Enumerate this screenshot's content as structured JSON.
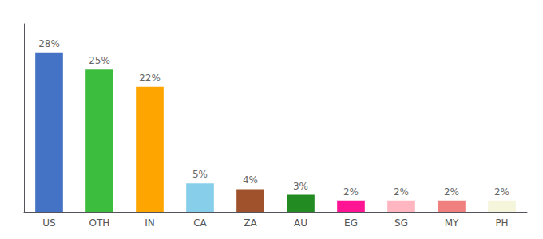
{
  "chart_data": {
    "type": "bar",
    "categories": [
      "US",
      "OTH",
      "IN",
      "CA",
      "ZA",
      "AU",
      "EG",
      "SG",
      "MY",
      "PH"
    ],
    "values": [
      28,
      25,
      22,
      5,
      4,
      3,
      2,
      2,
      2,
      2
    ],
    "value_labels": [
      "28%",
      "25%",
      "22%",
      "5%",
      "4%",
      "3%",
      "2%",
      "2%",
      "2%",
      "2%"
    ],
    "colors": [
      "#4472C4",
      "#3DBD3D",
      "#FFA500",
      "#87CEEB",
      "#A0522D",
      "#228B22",
      "#FF1493",
      "#FFB6C1",
      "#F08080",
      "#F5F5DC"
    ],
    "ylim": [
      0,
      33
    ],
    "data_labels": true,
    "tick_labels": "x",
    "grid": false
  }
}
